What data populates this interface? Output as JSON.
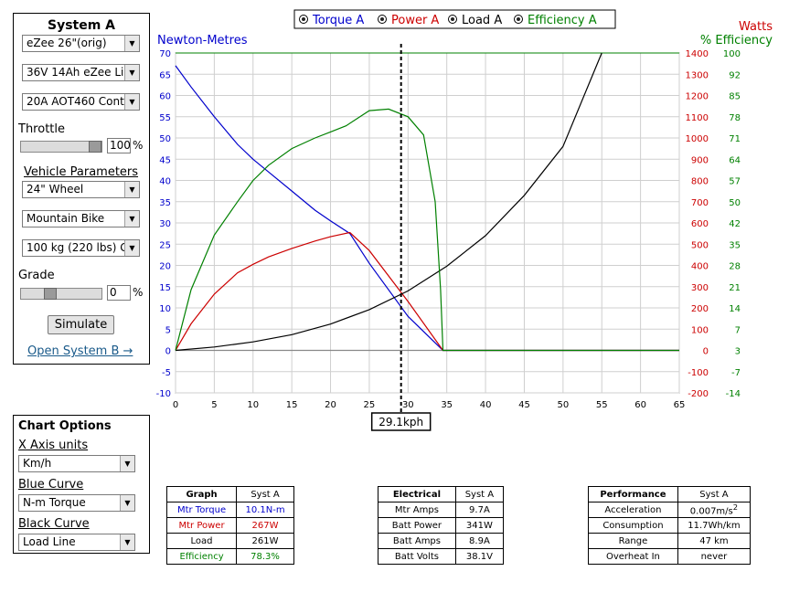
{
  "system": {
    "title": "System A",
    "wheel_select": "eZee 26\"(orig)",
    "battery_select": "36V 14Ah eZee Li",
    "controller_select": "20A AOT460 Cont",
    "throttle_label": "Throttle",
    "throttle_value": "100",
    "throttle_unit": "%",
    "vehicle_params_label": "Vehicle Parameters",
    "wheel_size_select": "24\"  Wheel",
    "bike_type_select": "Mountain Bike",
    "weight_select": "100 kg (220 lbs) G",
    "grade_label": "Grade",
    "grade_value": "0",
    "grade_unit": "%",
    "simulate_button": "Simulate",
    "open_system_b": "Open System B →"
  },
  "chart_options": {
    "title": "Chart Options",
    "x_axis_label": "X Axis units",
    "x_axis_value": "Km/h",
    "blue_curve_label": "Blue Curve",
    "blue_curve_value": "N-m Torque",
    "black_curve_label": "Black Curve",
    "black_curve_value": "Load Line"
  },
  "legend": [
    {
      "name": "Torque A",
      "color": "#0000cc"
    },
    {
      "name": "Power A",
      "color": "#cc0000"
    },
    {
      "name": "Load A",
      "color": "#000000"
    },
    {
      "name": "Efficiency A",
      "color": "#008000"
    }
  ],
  "chart_data": {
    "type": "line",
    "xlabel": "",
    "xlim": [
      0,
      65
    ],
    "x_ticks": [
      "0",
      "5",
      "10",
      "15",
      "20",
      "25",
      "30",
      "35",
      "40",
      "45",
      "50",
      "55",
      "60",
      "65"
    ],
    "ylabel_left": "Newton-Metres",
    "ylim_left": [
      -10,
      70
    ],
    "y_ticks_left": [
      "-10",
      "-5",
      "0",
      "5",
      "10",
      "15",
      "20",
      "25",
      "30",
      "35",
      "40",
      "45",
      "50",
      "55",
      "60",
      "65",
      "70"
    ],
    "ylabel_right_power": "Watts",
    "ylim_right_power": [
      -200,
      1400
    ],
    "y_ticks_right_power": [
      "-200",
      "-100",
      "0",
      "100",
      "200",
      "300",
      "400",
      "500",
      "600",
      "700",
      "800",
      "900",
      "1000",
      "1100",
      "1200",
      "1300",
      "1400"
    ],
    "ylabel_right_eff": "% Efficiency",
    "y_ticks_right_eff": [
      "-14",
      "-7",
      "3",
      "7",
      "14",
      "21",
      "28",
      "35",
      "42",
      "50",
      "57",
      "64",
      "71",
      "78",
      "85",
      "92",
      "100"
    ],
    "grid": true,
    "marker_x": 29.1,
    "marker_label": "29.1kph",
    "series": [
      {
        "name": "Torque A",
        "color": "#0000cc",
        "axis": "left",
        "x": [
          0,
          2,
          5,
          8,
          10,
          12,
          15,
          18,
          20,
          22.5,
          25,
          30,
          34.5,
          65
        ],
        "y": [
          67,
          62,
          55,
          48.5,
          45,
          42,
          37.5,
          33,
          30.5,
          27.5,
          20.5,
          8,
          0,
          0
        ]
      },
      {
        "name": "Power A",
        "color": "#cc0000",
        "axis": "right_power",
        "x": [
          0,
          2,
          5,
          8,
          10,
          12,
          15,
          18,
          20,
          22.5,
          25,
          30,
          34.5,
          65
        ],
        "y": [
          0,
          125,
          265,
          365,
          405,
          440,
          480,
          515,
          535,
          555,
          470,
          230,
          0,
          0
        ]
      },
      {
        "name": "Load A",
        "color": "#000000",
        "axis": "left",
        "x": [
          0,
          5,
          10,
          15,
          20,
          25,
          30,
          35,
          40,
          45,
          50,
          55
        ],
        "y": [
          0,
          0.8,
          2,
          3.7,
          6.2,
          9.6,
          14,
          19.8,
          27,
          36.5,
          48,
          70
        ]
      },
      {
        "name": "Efficiency A",
        "color": "#008000",
        "axis": "right_eff",
        "x": [
          0,
          2,
          5,
          8,
          10,
          12,
          15,
          18,
          20,
          22,
          25,
          27.5,
          30,
          32,
          33.5,
          34.2,
          34.5,
          65
        ],
        "y": [
          3,
          20,
          38,
          50,
          57,
          62,
          67.5,
          71,
          73,
          75,
          80,
          80.5,
          78,
          72,
          50,
          20,
          3,
          3
        ]
      }
    ]
  },
  "graph_table": {
    "headers": [
      "Graph",
      "Syst A"
    ],
    "rows": [
      {
        "label": "Mtr Torque",
        "value": "10.1N-m",
        "color": "#0000cc"
      },
      {
        "label": "Mtr Power",
        "value": "267W",
        "color": "#cc0000"
      },
      {
        "label": "Load",
        "value": "261W",
        "color": "#000000"
      },
      {
        "label": "Efficiency",
        "value": "78.3%",
        "color": "#008000"
      }
    ]
  },
  "electrical_table": {
    "headers": [
      "Electrical",
      "Syst A"
    ],
    "rows": [
      {
        "label": "Mtr Amps",
        "value": "9.7A"
      },
      {
        "label": "Batt Power",
        "value": "341W"
      },
      {
        "label": "Batt Amps",
        "value": "8.9A"
      },
      {
        "label": "Batt Volts",
        "value": "38.1V"
      }
    ]
  },
  "performance_table": {
    "headers": [
      "Performance",
      "Syst A"
    ],
    "rows": [
      {
        "label": "Acceleration",
        "value": "0.007m/s",
        "sup": "2"
      },
      {
        "label": "Consumption",
        "value": "11.7Wh/km"
      },
      {
        "label": "Range",
        "value": "47 km"
      },
      {
        "label": "Overheat In",
        "value": "never"
      }
    ]
  }
}
